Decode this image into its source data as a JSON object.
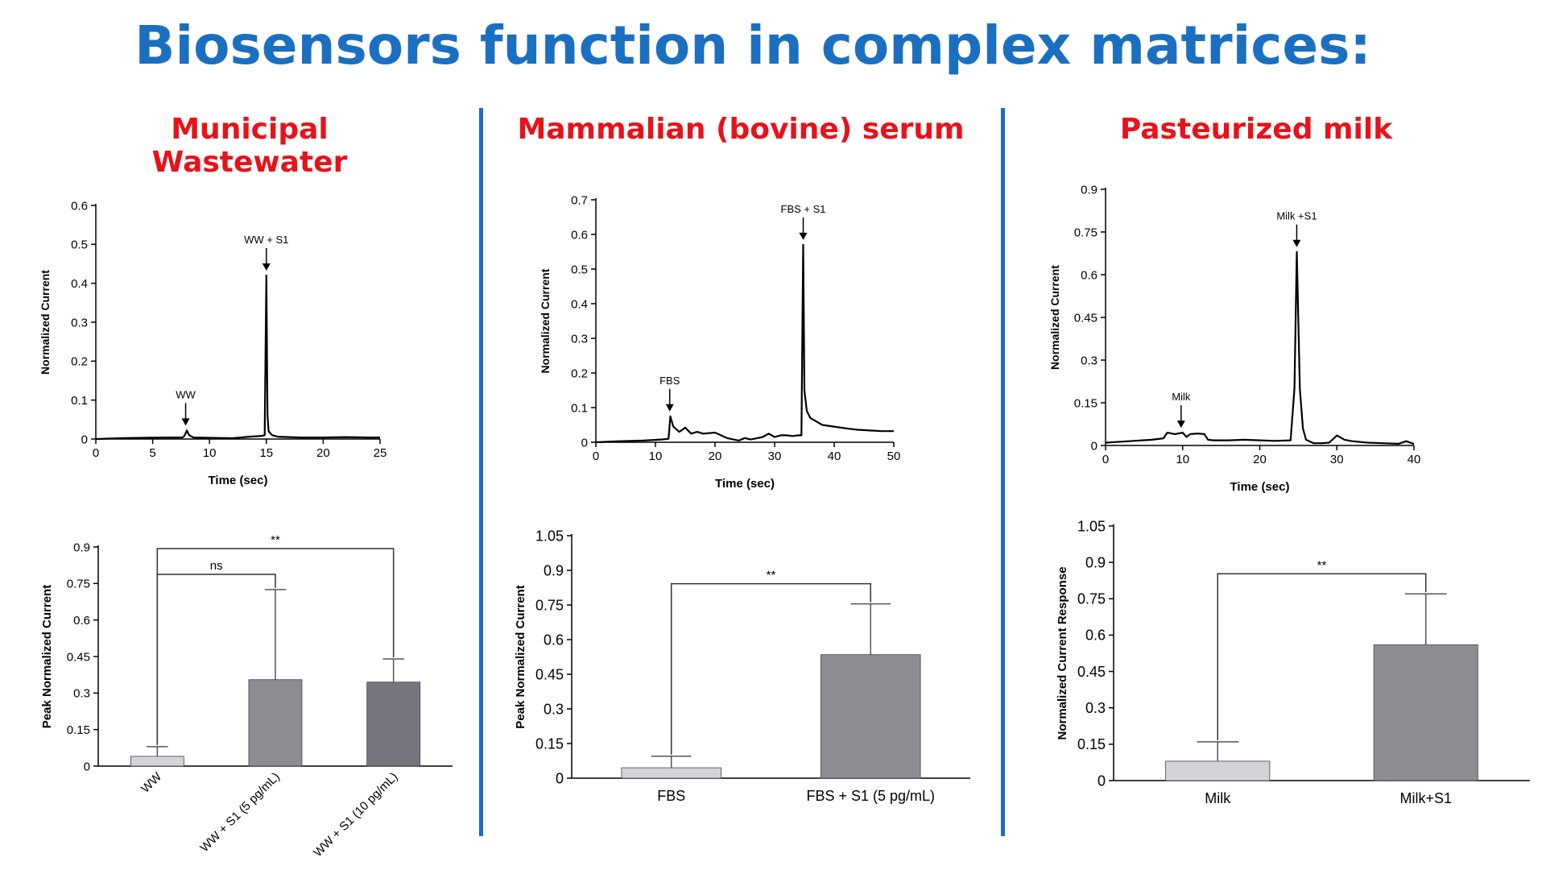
{
  "title": "Biosensors function in complex matrices:",
  "panels": [
    {
      "title": "Municipal Wastewater"
    },
    {
      "title": "Mammalian (bovine) serum"
    },
    {
      "title": "Pasteurized milk"
    }
  ],
  "colors": {
    "title": "#1a6fc1",
    "panel_title": "#e8121a",
    "divider": "#1a6fc1",
    "trace": "#000000"
  },
  "chart_data": [
    {
      "type": "line",
      "xlabel": "Time (sec)",
      "ylabel": "Normalized Current",
      "xlim": [
        0,
        25
      ],
      "ylim": [
        0,
        0.6
      ],
      "xticks": [
        0,
        5,
        10,
        15,
        20,
        25
      ],
      "yticks": [
        0,
        0.1,
        0.2,
        0.3,
        0.4,
        0.5,
        0.6
      ],
      "ytick_labels": [
        "0",
        "0.1",
        "0.2",
        "0.3",
        "0.4",
        "0.5",
        "0.6"
      ],
      "grid": false,
      "series": [
        {
          "x": [
            0,
            2,
            4,
            6,
            7.6,
            7.8,
            8.0,
            8.2,
            8.6,
            10,
            12,
            13.5,
            14.6,
            14.85,
            15.0,
            15.1,
            15.2,
            15.5,
            16,
            17,
            18,
            20,
            22,
            24,
            25
          ],
          "y": [
            0.0,
            0.002,
            0.003,
            0.004,
            0.004,
            0.008,
            0.022,
            0.01,
            0.004,
            0.003,
            0.002,
            0.006,
            0.008,
            0.01,
            0.42,
            0.06,
            0.02,
            0.01,
            0.006,
            0.005,
            0.004,
            0.004,
            0.005,
            0.004,
            0.004
          ]
        }
      ],
      "annotations": [
        {
          "text": "WW",
          "x": 7.9,
          "y": 0.022
        },
        {
          "text": "WW + S1",
          "x": 15.0,
          "y": 0.42
        }
      ]
    },
    {
      "type": "line",
      "xlabel": "Time (sec)",
      "ylabel": "Normalized Current",
      "xlim": [
        0,
        50
      ],
      "ylim": [
        0,
        0.7
      ],
      "xticks": [
        0,
        10,
        20,
        30,
        40,
        50
      ],
      "yticks": [
        0,
        0.1,
        0.2,
        0.3,
        0.4,
        0.5,
        0.6,
        0.7
      ],
      "ytick_labels": [
        "0",
        "0.1",
        "0.2",
        "0.3",
        "0.4",
        "0.5",
        "0.6",
        "0.7"
      ],
      "grid": false,
      "series": [
        {
          "x": [
            0,
            4,
            8,
            11,
            12.2,
            12.5,
            13,
            14,
            15,
            16,
            17,
            18,
            20,
            22,
            24,
            25,
            26,
            28,
            29,
            30,
            31,
            32,
            33,
            34,
            34.5,
            34.8,
            35,
            35.4,
            36,
            37,
            38,
            40,
            42,
            44,
            46,
            48,
            50
          ],
          "y": [
            0.0,
            0.003,
            0.005,
            0.008,
            0.01,
            0.075,
            0.045,
            0.03,
            0.042,
            0.025,
            0.03,
            0.025,
            0.028,
            0.012,
            0.005,
            0.012,
            0.008,
            0.015,
            0.025,
            0.015,
            0.02,
            0.02,
            0.018,
            0.02,
            0.02,
            0.57,
            0.15,
            0.09,
            0.07,
            0.06,
            0.05,
            0.045,
            0.04,
            0.036,
            0.034,
            0.032,
            0.032
          ]
        }
      ],
      "annotations": [
        {
          "text": "FBS",
          "x": 12.4,
          "y": 0.075
        },
        {
          "text": "FBS + S1",
          "x": 34.8,
          "y": 0.57
        }
      ]
    },
    {
      "type": "line",
      "xlabel": "Time (sec)",
      "ylabel": "Normalized Current",
      "xlim": [
        0,
        40
      ],
      "ylim": [
        0,
        0.9
      ],
      "xticks": [
        0,
        10,
        20,
        30,
        40
      ],
      "yticks": [
        0,
        0.15,
        0.3,
        0.45,
        0.6,
        0.75,
        0.9
      ],
      "ytick_labels": [
        "0",
        "0.15",
        "0.3",
        "0.45",
        "0.6",
        "0.75",
        "0.9"
      ],
      "grid": false,
      "series": [
        {
          "x": [
            0,
            3,
            6,
            7.5,
            8,
            9,
            10,
            10.5,
            11,
            12,
            12.8,
            13.3,
            14,
            16,
            18,
            20,
            22,
            24,
            24.5,
            24.8,
            25.2,
            25.6,
            26,
            27,
            28,
            29,
            30,
            31,
            32,
            34,
            36,
            38,
            39,
            40
          ],
          "y": [
            0.01,
            0.015,
            0.02,
            0.025,
            0.045,
            0.04,
            0.045,
            0.03,
            0.04,
            0.042,
            0.04,
            0.02,
            0.018,
            0.018,
            0.02,
            0.018,
            0.016,
            0.018,
            0.2,
            0.68,
            0.2,
            0.06,
            0.02,
            0.008,
            0.008,
            0.01,
            0.035,
            0.02,
            0.015,
            0.01,
            0.008,
            0.006,
            0.015,
            0.005
          ]
        }
      ],
      "annotations": [
        {
          "text": "Milk",
          "x": 9.8,
          "y": 0.045
        },
        {
          "text": "Milk +S1",
          "x": 24.8,
          "y": 0.68
        }
      ]
    },
    {
      "type": "bar",
      "ylabel": "Peak Normalized Current",
      "ylim": [
        0,
        0.9
      ],
      "yticks": [
        0,
        0.15,
        0.3,
        0.45,
        0.6,
        0.75,
        0.9
      ],
      "ytick_labels": [
        "0",
        "0.15",
        "0.3",
        "0.45",
        "0.6",
        "0.75",
        "0.9"
      ],
      "categories": [
        "WW",
        "WW + S1 (5 pg/mL)",
        "WW + S1 (10 pg/mL)"
      ],
      "values": [
        0.04,
        0.355,
        0.345
      ],
      "errors": [
        0.04,
        0.37,
        0.095
      ],
      "bar_colors": [
        "#d3d4d8",
        "#8c8d93",
        "#75767d"
      ],
      "tick_rotation": -45,
      "significance": [
        {
          "from": 0,
          "to": 1,
          "label": "ns"
        },
        {
          "from": 0,
          "to": 2,
          "label": "**"
        }
      ]
    },
    {
      "type": "bar",
      "ylabel": "Peak Normalized Current",
      "ylim": [
        0,
        1.05
      ],
      "yticks": [
        0,
        0.15,
        0.3,
        0.45,
        0.6,
        0.75,
        0.9,
        1.05
      ],
      "ytick_labels": [
        "0",
        "0.15",
        "0.3",
        "0.45",
        "0.6",
        "0.75",
        "0.9",
        "1.05"
      ],
      "categories": [
        "FBS",
        "FBS + S1 (5 pg/mL)"
      ],
      "values": [
        0.045,
        0.535
      ],
      "errors": [
        0.05,
        0.22
      ],
      "bar_colors": [
        "#d3d4d8",
        "#8c8d93"
      ],
      "tick_rotation": 0,
      "significance": [
        {
          "from": 0,
          "to": 1,
          "label": "**"
        }
      ]
    },
    {
      "type": "bar",
      "ylabel": "Normalized Current Response",
      "ylim": [
        0,
        1.05
      ],
      "yticks": [
        0,
        0.15,
        0.3,
        0.45,
        0.6,
        0.75,
        0.9,
        1.05
      ],
      "ytick_labels": [
        "0",
        "0.15",
        "0.3",
        "0.45",
        "0.6",
        "0.75",
        "0.9",
        "1.05"
      ],
      "categories": [
        "Milk",
        "Milk+S1"
      ],
      "values": [
        0.08,
        0.56
      ],
      "errors": [
        0.08,
        0.21
      ],
      "bar_colors": [
        "#d3d4d8",
        "#8c8d93"
      ],
      "tick_rotation": 0,
      "significance": [
        {
          "from": 0,
          "to": 1,
          "label": "**"
        }
      ]
    }
  ]
}
